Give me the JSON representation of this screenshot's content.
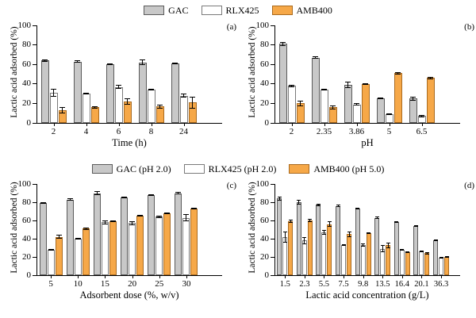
{
  "figure": {
    "legends": [
      {
        "name": "legend-top",
        "items": [
          {
            "label": "GAC",
            "color": "#c8c8c8",
            "border": "#5a5a5a"
          },
          {
            "label": "RLX425",
            "color": "#ffffff",
            "border": "#7a7a7a"
          },
          {
            "label": "AMB400",
            "color": "#f6a848",
            "border": "#a96a1f"
          }
        ]
      },
      {
        "name": "legend-middle",
        "items": [
          {
            "label": "GAC (pH 2.0)",
            "color": "#c8c8c8",
            "border": "#5a5a5a"
          },
          {
            "label": "RLX425 (pH 2.0)",
            "color": "#ffffff",
            "border": "#7a7a7a"
          },
          {
            "label": "AMB400 (pH 5.0)",
            "color": "#f6a848",
            "border": "#a96a1f"
          }
        ]
      }
    ]
  },
  "chart_data": [
    {
      "type": "bar",
      "panel": "(a)",
      "xlabel": "Time (h)",
      "ylabel": "Lactic acid adsorbed (%)",
      "ylim": [
        0,
        100
      ],
      "yticks": [
        0,
        20,
        40,
        60,
        80,
        100
      ],
      "grid": false,
      "legend_position": "top-center",
      "categories": [
        "2",
        "4",
        "6",
        "8",
        "24"
      ],
      "series": [
        {
          "name": "GAC",
          "color": "#c8c8c8",
          "border": "#5a5a5a",
          "values": [
            64,
            63,
            60,
            62,
            61
          ],
          "errors": [
            1,
            1,
            1,
            3,
            1
          ]
        },
        {
          "name": "RLX425",
          "color": "#ffffff",
          "border": "#7a7a7a",
          "values": [
            31,
            30,
            37,
            34,
            28
          ],
          "errors": [
            4,
            1,
            2,
            1,
            2
          ]
        },
        {
          "name": "AMB400",
          "color": "#f6a848",
          "border": "#a96a1f",
          "values": [
            13,
            16,
            22,
            17,
            21
          ],
          "errors": [
            3,
            1,
            3,
            2,
            6
          ]
        }
      ]
    },
    {
      "type": "bar",
      "panel": "(b)",
      "xlabel": "pH",
      "ylabel": "Lactic acid adsorbed (%)",
      "ylim": [
        0,
        100
      ],
      "yticks": [
        0,
        20,
        40,
        60,
        80,
        100
      ],
      "grid": false,
      "legend_position": "top-center",
      "categories": [
        "2",
        "2.35",
        "3.86",
        "5",
        "6.5"
      ],
      "series": [
        {
          "name": "GAC",
          "color": "#c8c8c8",
          "border": "#5a5a5a",
          "values": [
            81,
            67,
            39,
            25,
            25
          ],
          "errors": [
            2,
            1,
            3,
            1,
            2
          ]
        },
        {
          "name": "RLX425",
          "color": "#ffffff",
          "border": "#7a7a7a",
          "values": [
            38,
            34,
            19,
            9,
            7
          ],
          "errors": [
            1,
            1,
            1,
            1,
            1
          ]
        },
        {
          "name": "AMB400",
          "color": "#f6a848",
          "border": "#a96a1f",
          "values": [
            20,
            16,
            40,
            51,
            46
          ],
          "errors": [
            3,
            2,
            1,
            1,
            1
          ]
        }
      ]
    },
    {
      "type": "bar",
      "panel": "(c)",
      "xlabel": "Adsorbent dose (%, w/v)",
      "ylabel": "Lactic acid adsorbed (%)",
      "ylim": [
        0,
        100
      ],
      "yticks": [
        0,
        20,
        40,
        60,
        80,
        100
      ],
      "grid": false,
      "legend_position": "top-center",
      "categories": [
        "5",
        "10",
        "15",
        "20",
        "25",
        "30"
      ],
      "series": [
        {
          "name": "GAC (pH 2.0)",
          "color": "#c8c8c8",
          "border": "#5a5a5a",
          "values": [
            79,
            83,
            90,
            85,
            88,
            90
          ],
          "errors": [
            1,
            1,
            2,
            1,
            1,
            1
          ]
        },
        {
          "name": "RLX425 (pH 2.0)",
          "color": "#ffffff",
          "border": "#7a7a7a",
          "values": [
            28,
            40,
            58,
            57,
            64,
            63
          ],
          "errors": [
            1,
            1,
            2,
            2,
            1,
            4
          ]
        },
        {
          "name": "AMB400 (pH 5.0)",
          "color": "#f6a848",
          "border": "#a96a1f",
          "values": [
            42,
            51,
            59,
            65,
            68,
            73
          ],
          "errors": [
            2,
            1,
            1,
            1,
            1,
            1
          ]
        }
      ]
    },
    {
      "type": "bar",
      "panel": "(d)",
      "xlabel": "Lactic acid concentration (g/L)",
      "ylabel": "Lactic acid adsorbed (%)",
      "ylim": [
        0,
        100
      ],
      "yticks": [
        0,
        20,
        40,
        60,
        80,
        100
      ],
      "grid": false,
      "legend_position": "top-center",
      "categories": [
        "1.5",
        "2.3",
        "5.5",
        "7.5",
        "9.8",
        "13.5",
        "16.4",
        "20.1",
        "36.3"
      ],
      "series": [
        {
          "name": "GAC (pH 2.0)",
          "color": "#c8c8c8",
          "border": "#5a5a5a",
          "values": [
            84,
            80,
            77,
            76,
            73,
            63,
            58,
            54,
            38
          ],
          "errors": [
            2,
            3,
            1,
            1,
            1,
            1,
            1,
            1,
            1
          ]
        },
        {
          "name": "RLX425 (pH 2.0)",
          "color": "#ffffff",
          "border": "#7a7a7a",
          "values": [
            42,
            38,
            47,
            33,
            33,
            29,
            28,
            26,
            19
          ],
          "errors": [
            6,
            4,
            3,
            1,
            2,
            4,
            1,
            1,
            1
          ]
        },
        {
          "name": "AMB400 (pH 5.0)",
          "color": "#f6a848",
          "border": "#a96a1f",
          "values": [
            59,
            60,
            56,
            45,
            46,
            33,
            25,
            24,
            20
          ],
          "errors": [
            2,
            2,
            3,
            3,
            1,
            3,
            1,
            1,
            1
          ]
        }
      ]
    }
  ]
}
